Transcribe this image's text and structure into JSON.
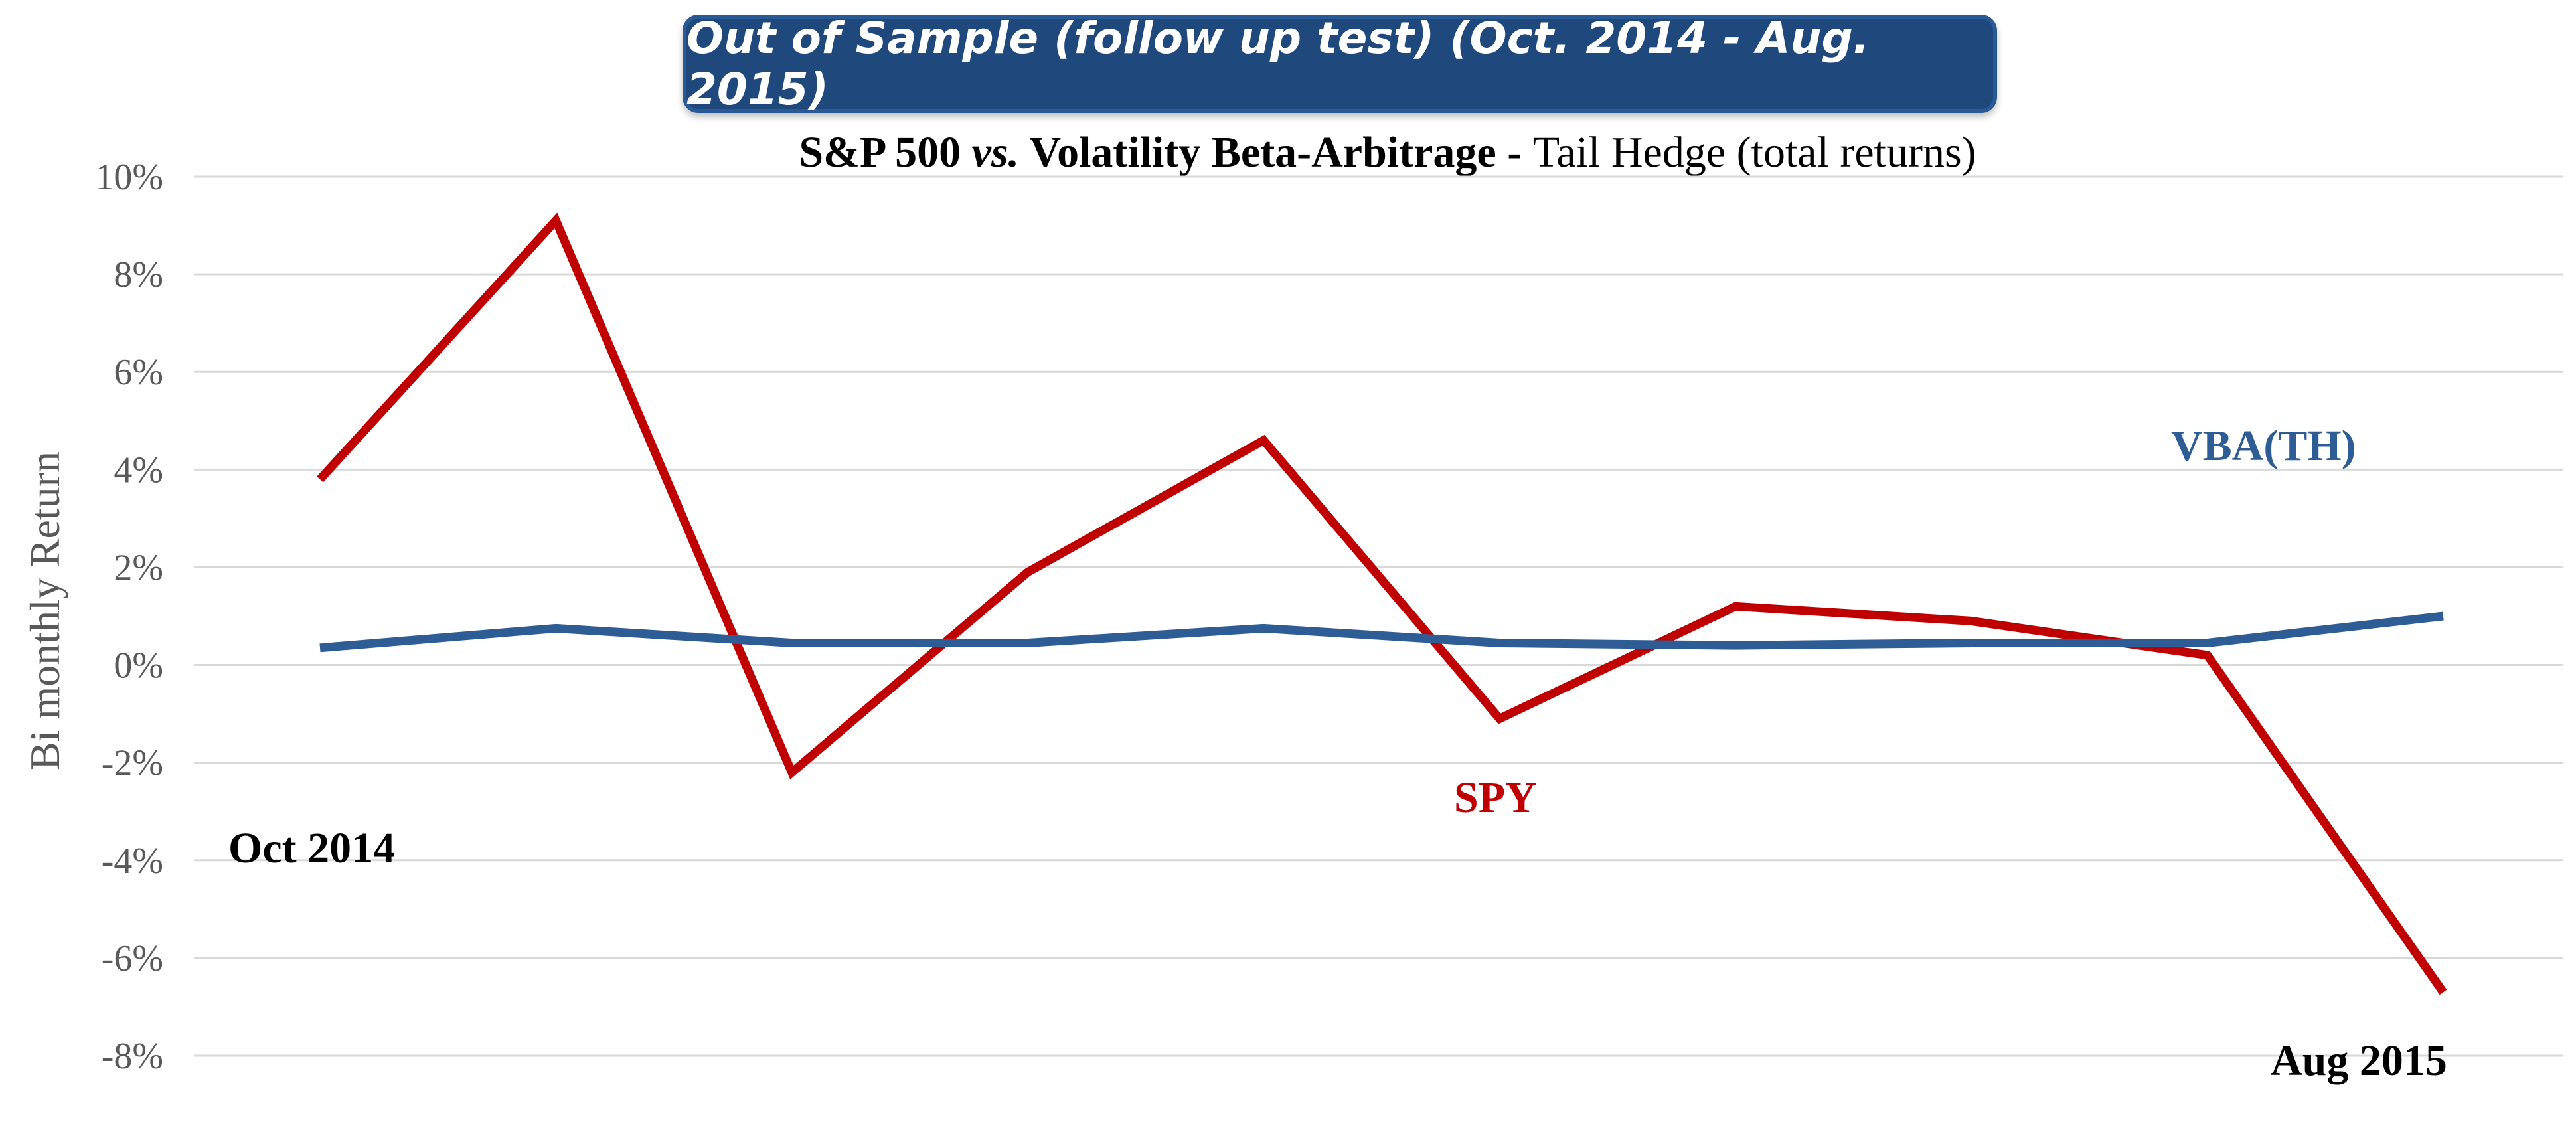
{
  "banner_title": "Out of Sample (follow up test) (Oct. 2014 - Aug. 2015)",
  "subtitle": {
    "part1": "S&P 500 ",
    "part2": "vs.",
    "part3": " Volatility Beta-Arbitrage - ",
    "part4": "Tail Hedge (total returns)"
  },
  "chart_data": {
    "type": "line",
    "title": "S&P 500 vs. Volatility Beta-Arbitrage - Tail Hedge (total returns)",
    "ylabel": "Bi monthly Return",
    "xlabel": "",
    "x": [
      1,
      2,
      3,
      4,
      5,
      6,
      7,
      8,
      9,
      10
    ],
    "ylim": [
      -8,
      10
    ],
    "yticks": [
      10,
      8,
      6,
      4,
      2,
      0,
      -2,
      -4,
      -6,
      -8
    ],
    "ytick_labels": [
      "10%",
      "8%",
      "6%",
      "4%",
      "2%",
      "0%",
      "-2%",
      "-4%",
      "-6%",
      "-8%"
    ],
    "grid": "horizontal",
    "series": [
      {
        "name": "SPY",
        "color": "#c00000",
        "values": [
          3.8,
          9.1,
          -2.2,
          1.9,
          4.6,
          -1.1,
          1.2,
          0.9,
          0.2,
          -6.7
        ]
      },
      {
        "name": "VBA(TH)",
        "color": "#2e5c94",
        "values": [
          0.35,
          0.75,
          0.45,
          0.45,
          0.75,
          0.45,
          0.4,
          0.45,
          0.45,
          1.0
        ]
      }
    ],
    "annotations": {
      "start": "Oct 2014",
      "end": "Aug 2015"
    }
  }
}
